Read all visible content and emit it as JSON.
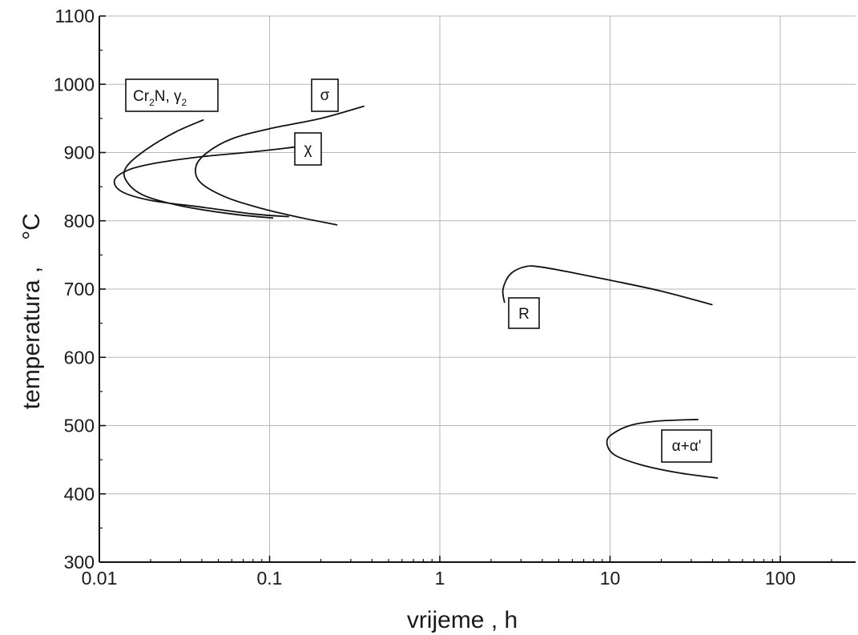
{
  "chart_data": {
    "type": "line",
    "title": "",
    "xlabel": "vrijeme , h",
    "ylabel_main": "temperatura ,",
    "ylabel_unit": "°C",
    "xscale": "log",
    "xlim": [
      0.01,
      300
    ],
    "ylim": [
      300,
      1100
    ],
    "grid": true,
    "x_ticks": [
      {
        "value": 0.01,
        "label": "0.01"
      },
      {
        "value": 0.1,
        "label": "0.1"
      },
      {
        "value": 1,
        "label": "1"
      },
      {
        "value": 10,
        "label": "10"
      },
      {
        "value": 100,
        "label": "100"
      }
    ],
    "y_ticks": [
      {
        "value": 300,
        "label": "300"
      },
      {
        "value": 400,
        "label": "400"
      },
      {
        "value": 500,
        "label": "500"
      },
      {
        "value": 600,
        "label": "600"
      },
      {
        "value": 700,
        "label": "700"
      },
      {
        "value": 800,
        "label": "800"
      },
      {
        "value": 900,
        "label": "900"
      },
      {
        "value": 1000,
        "label": "1000"
      },
      {
        "value": 1100,
        "label": "1100"
      }
    ],
    "series": [
      {
        "label": "Cr2N, γ2",
        "points": [
          [
            0.041,
            948
          ],
          [
            0.028,
            930
          ],
          [
            0.019,
            905
          ],
          [
            0.0145,
            880
          ],
          [
            0.0143,
            860
          ],
          [
            0.018,
            838
          ],
          [
            0.03,
            822
          ],
          [
            0.06,
            810
          ],
          [
            0.105,
            804
          ]
        ]
      },
      {
        "label": "σ",
        "points": [
          [
            0.36,
            968
          ],
          [
            0.2,
            950
          ],
          [
            0.1,
            935
          ],
          [
            0.06,
            920
          ],
          [
            0.043,
            900
          ],
          [
            0.037,
            880
          ],
          [
            0.039,
            857
          ],
          [
            0.055,
            835
          ],
          [
            0.09,
            818
          ],
          [
            0.15,
            805
          ],
          [
            0.25,
            794
          ]
        ]
      },
      {
        "label": "χ",
        "points": [
          [
            0.14,
            908
          ],
          [
            0.08,
            901
          ],
          [
            0.04,
            894
          ],
          [
            0.022,
            885
          ],
          [
            0.015,
            875
          ],
          [
            0.0123,
            860
          ],
          [
            0.0135,
            843
          ],
          [
            0.02,
            830
          ],
          [
            0.04,
            820
          ],
          [
            0.08,
            810
          ],
          [
            0.13,
            806
          ]
        ]
      },
      {
        "label": "R",
        "points": [
          [
            2.4,
            680
          ],
          [
            2.35,
            700
          ],
          [
            2.6,
            722
          ],
          [
            3.2,
            733
          ],
          [
            4,
            732
          ],
          [
            6,
            724
          ],
          [
            10,
            713
          ],
          [
            20,
            697
          ],
          [
            40,
            677
          ]
        ]
      },
      {
        "label": "α+α'",
        "points": [
          [
            33,
            509
          ],
          [
            20,
            507
          ],
          [
            14,
            502
          ],
          [
            11,
            492
          ],
          [
            9.6,
            478
          ],
          [
            10.5,
            458
          ],
          [
            15,
            443
          ],
          [
            25,
            431
          ],
          [
            43,
            423
          ]
        ]
      }
    ],
    "annotations": [
      {
        "label_main": "Cr",
        "sub1": "2",
        "mid": "N, γ",
        "sub2": "2"
      },
      {
        "label": "σ"
      },
      {
        "label": "χ"
      },
      {
        "label": "R"
      },
      {
        "label": "α+α'"
      }
    ]
  }
}
